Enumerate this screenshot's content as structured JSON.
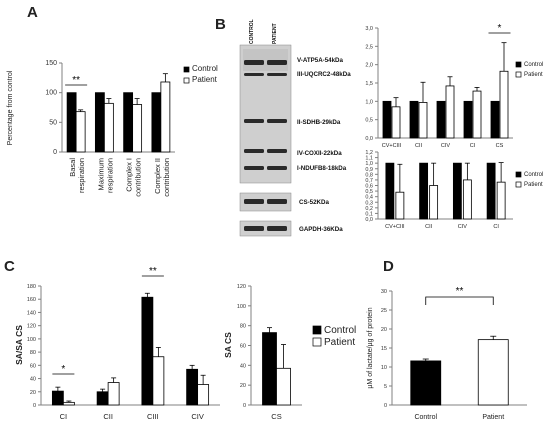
{
  "panels": {
    "A": "A",
    "B": "B",
    "C": "C",
    "D": "D"
  },
  "colors": {
    "control": "#000000",
    "patient": "#ffffff",
    "axis": "#808080",
    "blot_bg": "#d9d9d9",
    "band": "#2a2a2a"
  },
  "western_blot": {
    "lane_labels": [
      "CONTROL",
      "PATIENT"
    ],
    "main_bands": [
      "V-ATP5A-54kDa",
      "III-UQCRC2-48kDa",
      "II-SDHB-29kDa",
      "IV-COXII-22kDa",
      "I-NDUFB8-18kDa"
    ],
    "cs_band": "CS-52KDa",
    "gapdh_band": "GAPDH-36KDa"
  },
  "chart_data": [
    {
      "id": "A",
      "type": "bar",
      "ylabel": "Percentage from control",
      "categories": [
        "Basal respiration",
        "Maximum respiration",
        "Complex I contribution",
        "Complex II contribution"
      ],
      "category_lines": [
        [
          "Basal",
          "respiration"
        ],
        [
          "Maximum",
          "respiration"
        ],
        [
          "Complex I",
          "contribution"
        ],
        [
          "Complex II",
          "contribution"
        ]
      ],
      "series": [
        {
          "name": "Control",
          "values": [
            100,
            100,
            100,
            100
          ],
          "errors": [
            0,
            0,
            0,
            0
          ]
        },
        {
          "name": "Patient",
          "values": [
            68,
            82,
            80,
            118
          ],
          "errors": [
            3,
            8,
            10,
            14
          ]
        }
      ],
      "ylim": [
        0,
        150
      ],
      "yticks": [
        0,
        50,
        100,
        150
      ],
      "significance": [
        {
          "index": 0,
          "label": "**"
        }
      ],
      "legend": "right",
      "grid": false
    },
    {
      "id": "B1",
      "type": "bar",
      "categories": [
        "CV+CIII",
        "CII",
        "CIV",
        "CI",
        "CS"
      ],
      "series": [
        {
          "name": "Control",
          "values": [
            1.0,
            1.0,
            1.0,
            1.0,
            1.0
          ],
          "errors": [
            0,
            0,
            0,
            0,
            0
          ]
        },
        {
          "name": "Patient",
          "values": [
            0.85,
            0.97,
            1.42,
            1.28,
            1.82
          ],
          "errors": [
            0.25,
            0.55,
            0.25,
            0.1,
            0.78
          ]
        }
      ],
      "ylim": [
        0,
        3.0
      ],
      "yticks": [
        "0,0",
        "0,5",
        "1,0",
        "1,5",
        "2,0",
        "2,5",
        "3,0"
      ],
      "significance": [
        {
          "index": 4,
          "label": "*"
        }
      ],
      "legend": "right",
      "grid": false
    },
    {
      "id": "B2",
      "type": "bar",
      "categories": [
        "CV+CIII",
        "CII",
        "CIV",
        "CI"
      ],
      "series": [
        {
          "name": "Control",
          "values": [
            1.0,
            1.0,
            1.0,
            1.0
          ],
          "errors": [
            0,
            0,
            0,
            0
          ]
        },
        {
          "name": "Patient",
          "values": [
            0.48,
            0.6,
            0.7,
            0.66
          ],
          "errors": [
            0.5,
            0.4,
            0.3,
            0.35
          ]
        }
      ],
      "ylim": [
        0,
        1.2
      ],
      "yticks": [
        "0,0",
        "0,1",
        "0,2",
        "0,3",
        "0,4",
        "0,5",
        "0,6",
        "0,7",
        "0,8",
        "0,9",
        "1,0",
        "1,1",
        "1,2"
      ],
      "significance": [],
      "legend": "right",
      "grid": false
    },
    {
      "id": "C1",
      "type": "bar",
      "ylabel": "SA/SA CS",
      "categories": [
        "CI",
        "CII",
        "CIII",
        "CIV"
      ],
      "series": [
        {
          "name": "Control",
          "values": [
            21,
            20,
            163,
            54
          ],
          "errors": [
            6,
            4,
            6,
            6
          ]
        },
        {
          "name": "Patient",
          "values": [
            4,
            34,
            73,
            31
          ],
          "errors": [
            2,
            7,
            14,
            14
          ]
        }
      ],
      "ylim": [
        0,
        180
      ],
      "yticks": [
        0,
        20,
        40,
        60,
        80,
        100,
        120,
        140,
        160,
        180
      ],
      "significance": [
        {
          "index": 0,
          "label": "*"
        },
        {
          "index": 2,
          "label": "**"
        }
      ],
      "grid": false
    },
    {
      "id": "C2",
      "type": "bar",
      "ylabel": "SA CS",
      "categories": [
        "CS"
      ],
      "series": [
        {
          "name": "Control",
          "values": [
            73
          ],
          "errors": [
            5
          ]
        },
        {
          "name": "Patient",
          "values": [
            37
          ],
          "errors": [
            24
          ]
        }
      ],
      "ylim": [
        0,
        120
      ],
      "yticks": [
        0,
        20,
        40,
        60,
        80,
        100,
        120
      ],
      "significance": [],
      "legend": "right",
      "grid": false
    },
    {
      "id": "D",
      "type": "bar",
      "ylabel": "µM of lactate/µg of protein",
      "categories": [
        "Control",
        "Patient"
      ],
      "values": [
        11.6,
        17.2
      ],
      "errors": [
        0.5,
        0.9
      ],
      "bar_colors": [
        "#000000",
        "#ffffff"
      ],
      "ylim": [
        0,
        30
      ],
      "yticks": [
        0,
        5,
        10,
        15,
        20,
        25,
        30
      ],
      "significance": [
        {
          "from": 0,
          "to": 1,
          "label": "**"
        }
      ],
      "grid": false
    }
  ]
}
